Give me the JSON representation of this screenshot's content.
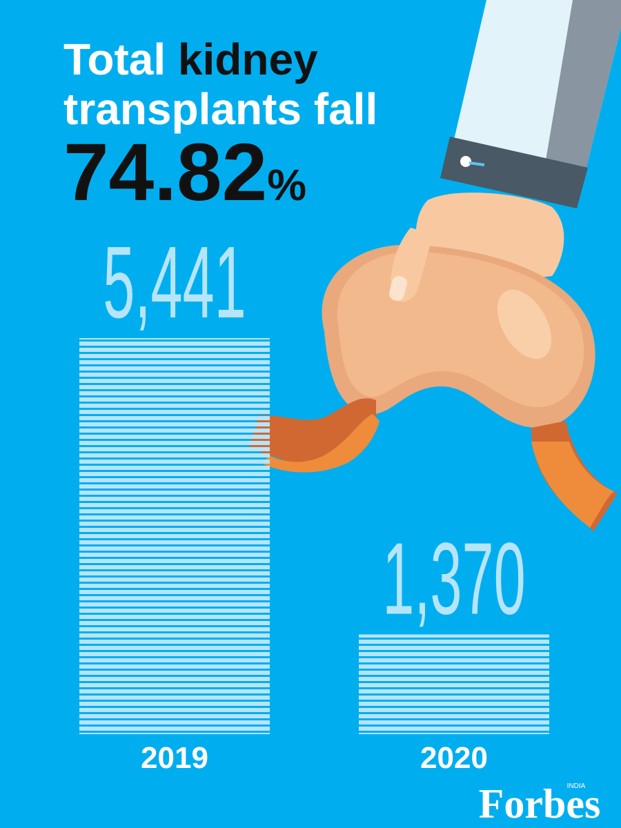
{
  "chart_data": {
    "type": "bar",
    "title": [
      "Total",
      "kidney",
      "transplants fall"
    ],
    "subtitle": "74.82%",
    "categories": [
      "2019",
      "2020"
    ],
    "values": [
      5441,
      1370
    ],
    "value_labels": [
      "5,441",
      "1,370"
    ],
    "color": "#b6e5fa"
  },
  "brand": {
    "name": "Forbes",
    "edition": "INDIA"
  }
}
